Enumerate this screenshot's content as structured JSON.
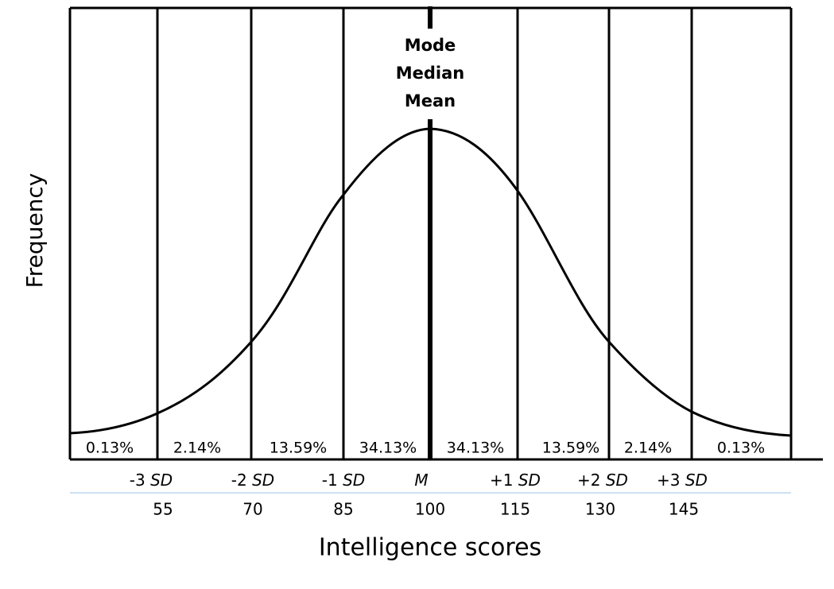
{
  "center_labels": [
    "Mode",
    "Median",
    "Mean"
  ],
  "percentages": [
    "0.13%",
    "2.14%",
    "13.59%",
    "34.13%",
    "34.13%",
    "13.59%",
    "2.14%",
    "0.13%"
  ],
  "sd_labels": [
    {
      "prefix": "-3",
      "italic": "SD"
    },
    {
      "prefix": "-2",
      "italic": "SD"
    },
    {
      "prefix": "-1",
      "italic": "SD"
    },
    {
      "italic": "M"
    },
    {
      "prefix": "+1",
      "italic": "SD"
    },
    {
      "prefix": "+2",
      "italic": "SD"
    },
    {
      "prefix": "+3",
      "italic": "SD"
    }
  ],
  "scores": [
    "55",
    "70",
    "85",
    "100",
    "115",
    "130",
    "145"
  ],
  "x_axis_title": "Intelligence scores",
  "y_axis_title": "Frequency"
}
